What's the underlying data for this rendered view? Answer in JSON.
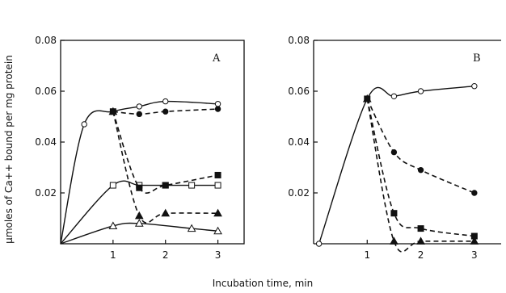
{
  "figure": {
    "ylabel": "μmoles of Ca++ bound per mg protein",
    "xlabel": "Incubation time, min"
  },
  "chart_data": [
    {
      "type": "line",
      "panel_label": "A",
      "xlim": [
        0,
        3.5
      ],
      "ylim": [
        0,
        0.08
      ],
      "xticks": [
        "1",
        "2",
        "3"
      ],
      "yticks": [
        "0.02",
        "0.04",
        "0.06",
        "0.08"
      ],
      "grid": false,
      "series": [
        {
          "marker": "open-circle",
          "line": "solid",
          "points": [
            [
              0,
              0
            ],
            [
              0.45,
              0.047
            ],
            [
              1,
              0.052
            ],
            [
              1.5,
              0.054
            ],
            [
              2,
              0.056
            ],
            [
              3,
              0.055
            ]
          ]
        },
        {
          "marker": "filled-circle",
          "line": "dashed",
          "points": [
            [
              1,
              0.052
            ],
            [
              1.5,
              0.051
            ],
            [
              2,
              0.052
            ],
            [
              3,
              0.053
            ]
          ]
        },
        {
          "marker": "open-square",
          "line": "solid",
          "points": [
            [
              0,
              0
            ],
            [
              1,
              0.023
            ],
            [
              1.5,
              0.023
            ],
            [
              2,
              0.023
            ],
            [
              2.5,
              0.023
            ],
            [
              3,
              0.023
            ]
          ]
        },
        {
          "marker": "filled-square",
          "line": "dashed",
          "points": [
            [
              1,
              0.052
            ],
            [
              1.5,
              0.022
            ],
            [
              2,
              0.023
            ],
            [
              3,
              0.027
            ]
          ]
        },
        {
          "marker": "open-triangle",
          "line": "solid",
          "points": [
            [
              0,
              0
            ],
            [
              1,
              0.007
            ],
            [
              1.5,
              0.008
            ],
            [
              2.5,
              0.006
            ],
            [
              3,
              0.005
            ]
          ]
        },
        {
          "marker": "filled-triangle",
          "line": "dashed",
          "points": [
            [
              1,
              0.052
            ],
            [
              1.5,
              0.011
            ],
            [
              2,
              0.012
            ],
            [
              3,
              0.012
            ]
          ]
        }
      ]
    },
    {
      "type": "line",
      "panel_label": "B",
      "xlim": [
        0,
        3.5
      ],
      "ylim": [
        0,
        0.08
      ],
      "xticks": [
        "1",
        "2",
        "3"
      ],
      "yticks": [
        "0.02",
        "0.04",
        "0.06",
        "0.08"
      ],
      "grid": false,
      "series": [
        {
          "marker": "open-circle",
          "line": "solid",
          "points": [
            [
              0.1,
              0
            ],
            [
              1,
              0.057
            ],
            [
              1.5,
              0.058
            ],
            [
              2,
              0.06
            ],
            [
              3,
              0.062
            ]
          ]
        },
        {
          "marker": "filled-circle",
          "line": "dashed",
          "points": [
            [
              1,
              0.057
            ],
            [
              1.5,
              0.036
            ],
            [
              2,
              0.029
            ],
            [
              3,
              0.02
            ]
          ]
        },
        {
          "marker": "filled-square",
          "line": "dashed",
          "points": [
            [
              1,
              0.057
            ],
            [
              1.5,
              0.012
            ],
            [
              2,
              0.006
            ],
            [
              3,
              0.003
            ]
          ]
        },
        {
          "marker": "filled-triangle",
          "line": "dashed",
          "points": [
            [
              1,
              0.057
            ],
            [
              1.5,
              0.001
            ],
            [
              2,
              0.001
            ],
            [
              3,
              0.001
            ]
          ]
        }
      ]
    }
  ]
}
